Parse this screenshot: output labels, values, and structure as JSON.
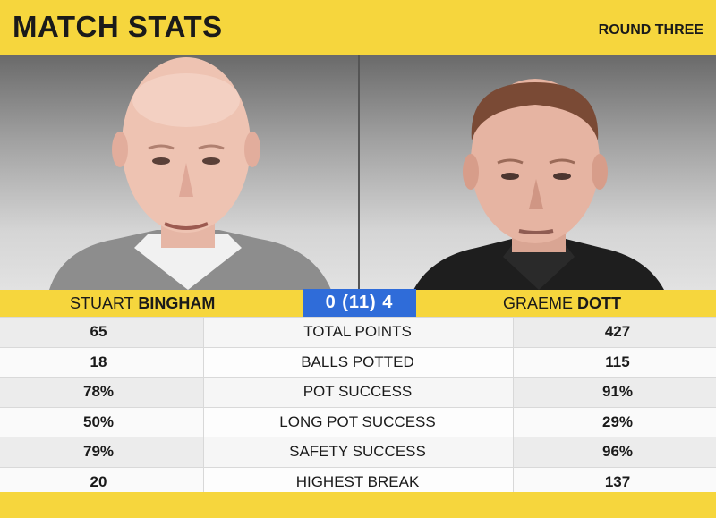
{
  "header": {
    "title": "MATCH STATS",
    "round": "ROUND THREE"
  },
  "players": {
    "left": {
      "first": "STUART",
      "last": "BINGHAM"
    },
    "right": {
      "first": "GRAEME",
      "last": "DOTT"
    }
  },
  "score": "0 (11) 4",
  "stats": [
    {
      "left": "65",
      "label": "TOTAL POINTS",
      "right": "427"
    },
    {
      "left": "18",
      "label": "BALLS POTTED",
      "right": "115"
    },
    {
      "left": "78%",
      "label": "POT SUCCESS",
      "right": "91%"
    },
    {
      "left": "50%",
      "label": "LONG POT SUCCESS",
      "right": "29%"
    },
    {
      "left": "79%",
      "label": "SAFETY SUCCESS",
      "right": "96%"
    },
    {
      "left": "20",
      "label": "HIGHEST BREAK",
      "right": "137"
    }
  ]
}
